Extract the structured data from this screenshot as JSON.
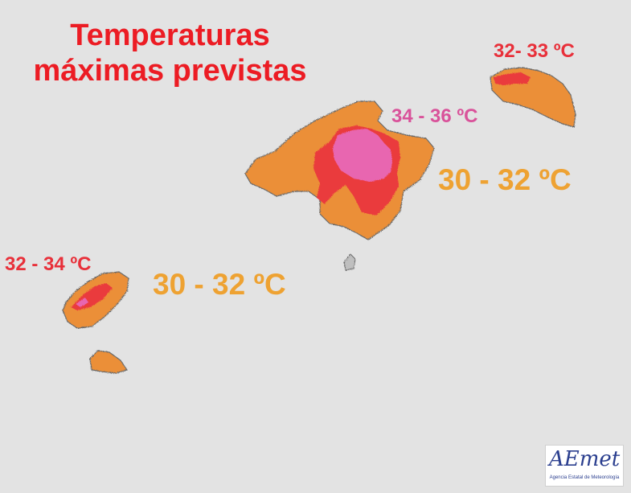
{
  "title": {
    "line1": "Temperaturas",
    "line2": "máximas previstas"
  },
  "labels": {
    "menorca": "32- 33 ºC",
    "mallorca_peak": "34 - 36 ºC",
    "mallorca": "30 - 32 ºC",
    "ibiza": "32 - 34 ºC",
    "sea": "30 - 32 ºC"
  },
  "logo": {
    "name": "AEmet",
    "subtitle": "Agencia Estatal de Meteorología"
  },
  "colors": {
    "background": "#e3e3e3",
    "range_30_32": "#eea232",
    "range_32_34": "#e8303a",
    "range_34_36": "#e866b0",
    "title": "#ec1c24"
  }
}
